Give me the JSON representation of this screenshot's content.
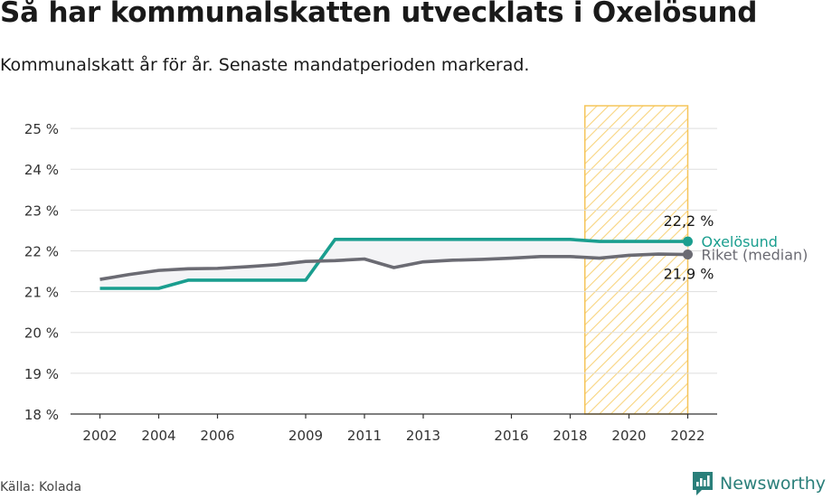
{
  "title": "Så har kommunalskatten utvecklats i Oxelösund",
  "subtitle": "Kommunalskatt år för år. Senaste mandatperioden markerad.",
  "source": "Källa: Kolada",
  "brand": "Newsworthy",
  "colors": {
    "oxelosund": "#1a9e8f",
    "riket": "#6b6b73",
    "highlight_border": "#f6c55a",
    "highlight_hatch": "#f8d47e",
    "grid": "#dddddd",
    "brand": "#2a7f7a"
  },
  "chart_data": {
    "type": "line",
    "y_tick_labels": [
      "18 %",
      "19 %",
      "20 %",
      "21 %",
      "22 %",
      "23 %",
      "24 %",
      "25 %"
    ],
    "y_ticks": [
      18,
      19,
      20,
      21,
      22,
      23,
      24,
      25
    ],
    "x_tick_labels": [
      "2002",
      "2004",
      "2006",
      "2009",
      "2011",
      "2013",
      "2016",
      "2018",
      "2020",
      "2022"
    ],
    "x_ticks": [
      2002,
      2004,
      2006,
      2009,
      2011,
      2013,
      2016,
      2018,
      2020,
      2022
    ],
    "xlim": [
      2001,
      2023
    ],
    "ylim": [
      18,
      25.6
    ],
    "highlight_period": [
      2018.5,
      2022
    ],
    "grid": true,
    "series": [
      {
        "name": "Oxelösund",
        "x": [
          2002,
          2003,
          2004,
          2005,
          2006,
          2007,
          2008,
          2009,
          2010,
          2011,
          2012,
          2013,
          2014,
          2015,
          2016,
          2017,
          2018,
          2019,
          2020,
          2021,
          2022
        ],
        "values": [
          21.08,
          21.08,
          21.08,
          21.28,
          21.28,
          21.28,
          21.28,
          21.28,
          22.28,
          22.28,
          22.28,
          22.28,
          22.28,
          22.28,
          22.28,
          22.28,
          22.28,
          22.23,
          22.23,
          22.23,
          22.23
        ],
        "end_label": "22,2 %"
      },
      {
        "name": "Riket (median)",
        "x": [
          2002,
          2003,
          2004,
          2005,
          2006,
          2007,
          2008,
          2009,
          2010,
          2011,
          2012,
          2013,
          2014,
          2015,
          2016,
          2017,
          2018,
          2019,
          2020,
          2021,
          2022
        ],
        "values": [
          21.3,
          21.42,
          21.52,
          21.56,
          21.57,
          21.61,
          21.66,
          21.74,
          21.76,
          21.8,
          21.59,
          21.73,
          21.77,
          21.79,
          21.82,
          21.86,
          21.86,
          21.82,
          21.89,
          21.92,
          21.91
        ],
        "end_label": "21,9 %"
      }
    ]
  }
}
